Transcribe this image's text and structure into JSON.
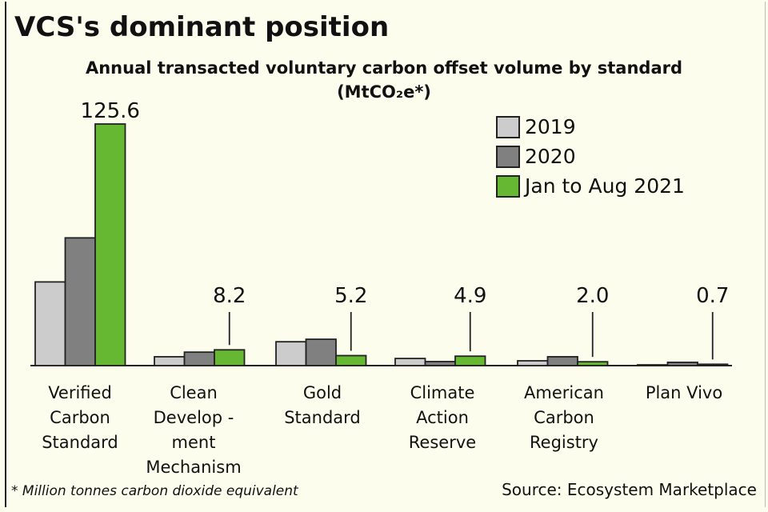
{
  "title": "VCS's dominant position",
  "subtitle_line1": "Annual transacted voluntary carbon offset volume by standard",
  "subtitle_line2": "(MtCO₂e*)",
  "footnote": "* Million tonnes carbon dioxide equivalent",
  "source": "Source: Ecosystem Marketplace",
  "chart_data": {
    "type": "bar",
    "title": "Annual transacted voluntary carbon offset volume by standard (MtCO2e*)",
    "ylabel": "MtCO2e",
    "ylim": [
      0,
      130
    ],
    "grid": false,
    "legend_position": "top-right",
    "categories": [
      "Verified Carbon Standard",
      "Clean Develop -ment Mechanism",
      "Gold Standard",
      "Climate Action Reserve",
      "American Carbon Registry",
      "Plan Vivo"
    ],
    "series": [
      {
        "name": "2019",
        "color": "#cccccc",
        "values": [
          43.5,
          4.6,
          12.4,
          3.7,
          2.5,
          0.4
        ]
      },
      {
        "name": "2020",
        "color": "#808080",
        "values": [
          66.4,
          7.0,
          13.7,
          2.1,
          4.6,
          1.7
        ]
      },
      {
        "name": "Jan to Aug 2021",
        "color": "#66b832",
        "values": [
          125.6,
          8.2,
          5.2,
          4.9,
          2.0,
          0.7
        ]
      }
    ],
    "data_labels": [
      "125.6",
      "8.2",
      "5.2",
      "4.9",
      "2.0",
      "0.7"
    ]
  }
}
